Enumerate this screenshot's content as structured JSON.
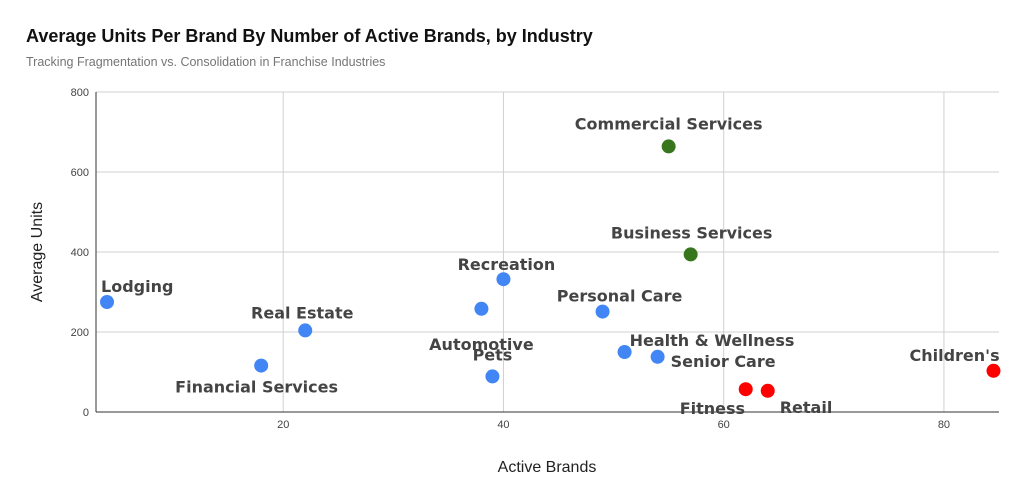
{
  "chart_data": {
    "type": "scatter",
    "title": "Average Units Per Brand By Number of Active Brands, by Industry",
    "subtitle": "Tracking Fragmentation vs. Consolidation in Franchise Industries",
    "xlabel": "Active Brands",
    "ylabel": "Average Units",
    "xlim": [
      3,
      85
    ],
    "ylim": [
      0,
      800
    ],
    "xticks": [
      20,
      40,
      60,
      80
    ],
    "yticks": [
      0,
      200,
      400,
      600,
      800
    ],
    "grid": true,
    "colors": {
      "blue": "#4285f4",
      "green": "#38761d",
      "red": "#ff0000"
    },
    "points": [
      {
        "label": "Lodging",
        "x": 4,
        "y": 275,
        "color": "blue"
      },
      {
        "label": "Financial Services",
        "x": 18,
        "y": 116,
        "color": "blue"
      },
      {
        "label": "Real Estate",
        "x": 22,
        "y": 204,
        "color": "blue"
      },
      {
        "label": "Automotive",
        "x": 38,
        "y": 258,
        "color": "blue"
      },
      {
        "label": "Pets",
        "x": 39,
        "y": 89,
        "color": "blue"
      },
      {
        "label": "Recreation",
        "x": 40,
        "y": 332,
        "color": "blue"
      },
      {
        "label": "Personal Care",
        "x": 49,
        "y": 251,
        "color": "blue"
      },
      {
        "label": "Health & Wellness",
        "x": 51,
        "y": 150,
        "color": "blue"
      },
      {
        "label": "Senior Care",
        "x": 54,
        "y": 138,
        "color": "blue"
      },
      {
        "label": "Commercial Services",
        "x": 55,
        "y": 664,
        "color": "green"
      },
      {
        "label": "Business Services",
        "x": 57,
        "y": 394,
        "color": "green"
      },
      {
        "label": "Fitness",
        "x": 62,
        "y": 57,
        "color": "red"
      },
      {
        "label": "Retail",
        "x": 64,
        "y": 53,
        "color": "red"
      },
      {
        "label": "Children's",
        "x": 84.5,
        "y": 103,
        "color": "red"
      }
    ]
  }
}
